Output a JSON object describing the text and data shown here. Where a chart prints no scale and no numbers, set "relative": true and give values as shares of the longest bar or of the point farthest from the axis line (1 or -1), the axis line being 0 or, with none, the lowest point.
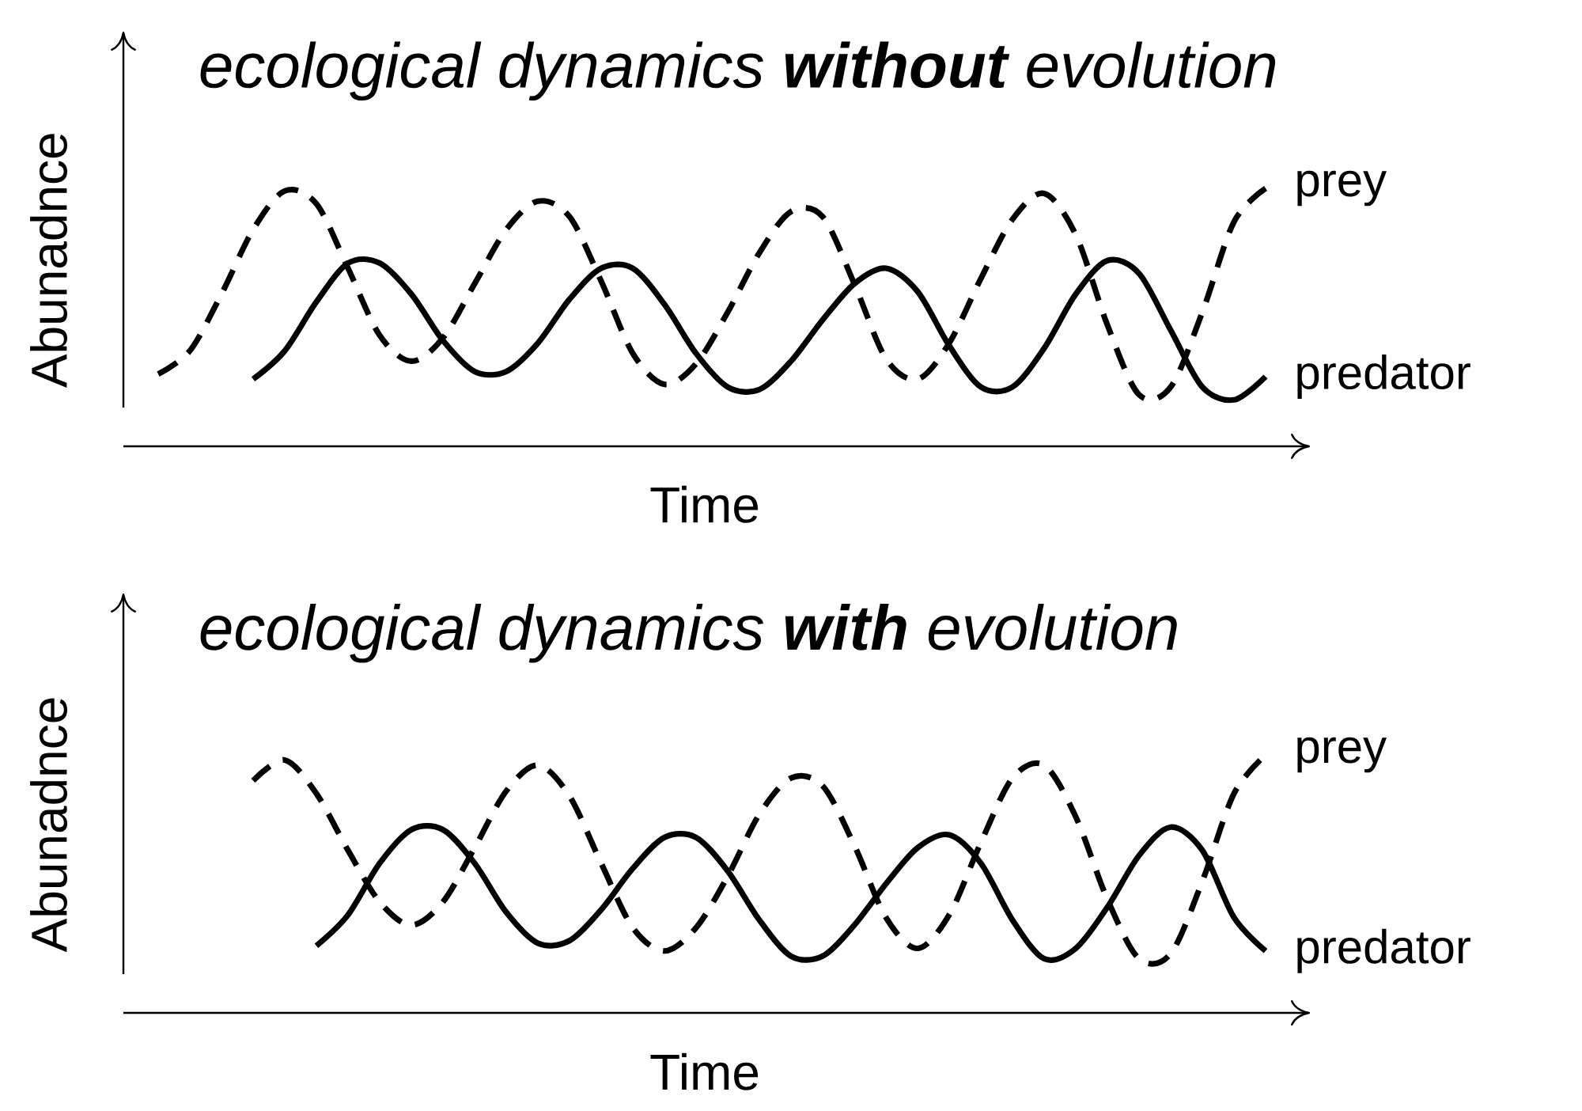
{
  "chart_data": [
    {
      "type": "line",
      "relative": true,
      "title": "ecological dynamics **without** evolution",
      "xlabel": "Time",
      "ylabel": "Abunadnce",
      "marker": "none",
      "categories": [
        null,
        null,
        null,
        null,
        null,
        null,
        null,
        null,
        null,
        null,
        null,
        null,
        null,
        null,
        null,
        null,
        null,
        null,
        null,
        null,
        null,
        null,
        null,
        null,
        null,
        null,
        null,
        null,
        null,
        null,
        null,
        null,
        null,
        null,
        null,
        null
      ],
      "series": [
        {
          "name": "prey",
          "color": "#000000",
          "line_style": "dashed",
          "values": [
            0.28,
            0.37,
            0.59,
            0.84,
            0.99,
            0.94,
            0.69,
            0.43,
            0.33,
            0.42,
            0.63,
            0.84,
            0.95,
            0.89,
            0.64,
            0.36,
            0.24,
            0.32,
            0.52,
            0.75,
            0.91,
            0.89,
            0.63,
            0.34,
            0.26,
            0.4,
            0.65,
            0.88,
            0.98,
            0.82,
            0.47,
            0.2,
            0.23,
            0.52,
            0.87,
            1.0
          ]
        },
        {
          "name": "predator",
          "color": "#000000",
          "line_style": "solid",
          "values": [
            null,
            null,
            null,
            0.26,
            0.37,
            0.56,
            0.71,
            0.71,
            0.59,
            0.41,
            0.29,
            0.29,
            0.4,
            0.57,
            0.69,
            0.69,
            0.55,
            0.36,
            0.23,
            0.22,
            0.33,
            0.49,
            0.63,
            0.69,
            0.6,
            0.39,
            0.23,
            0.23,
            0.38,
            0.59,
            0.72,
            0.67,
            0.45,
            0.23,
            0.18,
            0.27
          ]
        }
      ]
    },
    {
      "type": "line",
      "relative": true,
      "title": "ecological dynamics **with** evolution",
      "xlabel": "Time",
      "ylabel": "Abunadnce",
      "marker": "none",
      "categories": [
        null,
        null,
        null,
        null,
        null,
        null,
        null,
        null,
        null,
        null,
        null,
        null,
        null,
        null,
        null,
        null,
        null,
        null,
        null,
        null,
        null,
        null,
        null,
        null,
        null,
        null,
        null,
        null,
        null,
        null,
        null,
        null,
        null,
        null,
        null,
        null
      ],
      "series": [
        {
          "name": "prey",
          "color": "#000000",
          "line_style": "dashed",
          "values": [
            null,
            null,
            null,
            0.9,
            0.98,
            0.85,
            0.63,
            0.43,
            0.34,
            0.43,
            0.64,
            0.86,
            0.96,
            0.84,
            0.58,
            0.33,
            0.24,
            0.33,
            0.53,
            0.77,
            0.91,
            0.88,
            0.65,
            0.37,
            0.25,
            0.38,
            0.66,
            0.91,
            0.96,
            0.76,
            0.44,
            0.21,
            0.23,
            0.51,
            0.85,
            1.0
          ]
        },
        {
          "name": "predator",
          "color": "#000000",
          "line_style": "solid",
          "values": [
            null,
            null,
            null,
            null,
            null,
            0.26,
            0.38,
            0.58,
            0.71,
            0.71,
            0.58,
            0.39,
            0.27,
            0.28,
            0.4,
            0.56,
            0.68,
            0.68,
            0.55,
            0.36,
            0.22,
            0.22,
            0.34,
            0.5,
            0.64,
            0.69,
            0.58,
            0.36,
            0.21,
            0.25,
            0.41,
            0.61,
            0.72,
            0.63,
            0.37,
            0.24
          ]
        }
      ]
    }
  ]
}
